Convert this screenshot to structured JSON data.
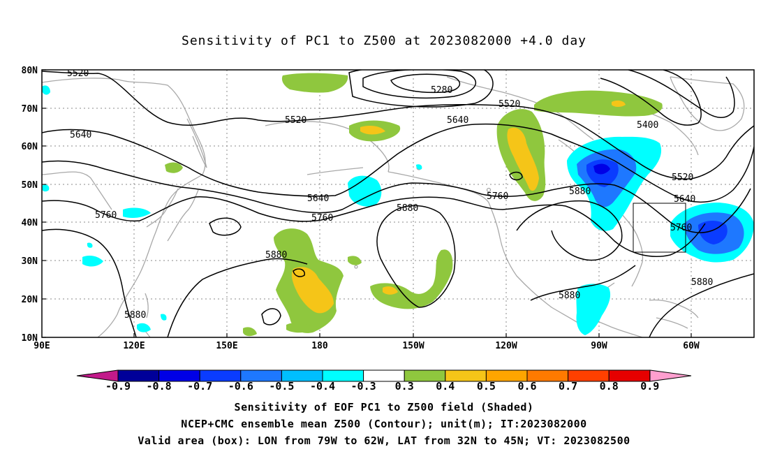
{
  "title": "Sensitivity of PC1 to Z500 at 2023082000 +4.0 day",
  "lat_labels": [
    "80N",
    "70N",
    "60N",
    "50N",
    "40N",
    "30N",
    "20N",
    "10N"
  ],
  "lon_labels": [
    "90E",
    "120E",
    "150E",
    "180",
    "150W",
    "120W",
    "90W",
    "60W"
  ],
  "contour_labels": {
    "c5520_nw": "5520",
    "c5520_mid": "5520",
    "c5520_ne": "5520",
    "c5520_e": "5520",
    "c5280": "5280",
    "c5400": "5400",
    "c5640_w": "5640",
    "c5640_mid": "5640",
    "c5640_n": "5640",
    "c5640_e": "5640",
    "c5760_w": "5760",
    "c5760_mid": "5760",
    "c5760_na": "5760",
    "c5760_e": "5760",
    "c5880_w": "5880",
    "c5880_pac": "5880",
    "c5880_mid": "5880",
    "c5880_na": "5880",
    "c5880_gulf": "5880",
    "c5880_atl": "5880"
  },
  "colorbar": {
    "labels": [
      "-0.9",
      "-0.8",
      "-0.7",
      "-0.6",
      "-0.5",
      "-0.4",
      "-0.3",
      "0.3",
      "0.4",
      "0.5",
      "0.6",
      "0.7",
      "0.8",
      "0.9"
    ],
    "colors": [
      "#000099",
      "#0000e6",
      "#0a3cff",
      "#1e78ff",
      "#00bfff",
      "#00ffff",
      "#ffffff",
      "#8fc73e",
      "#f5c518",
      "#ffa500",
      "#ff7a00",
      "#ff4000",
      "#e60000"
    ],
    "left_tip_color": "#c21a8a",
    "right_tip_color": "#ff9fcf"
  },
  "captions": {
    "line1": "Sensitivity of EOF PC1 to Z500 field (Shaded)",
    "line2": "NCEP+CMC ensemble mean Z500 (Contour); unit(m); IT:2023082000",
    "line3": "Valid area (box): LON from 79W to 62W, LAT from 32N to 45N; VT: 2023082500"
  }
}
